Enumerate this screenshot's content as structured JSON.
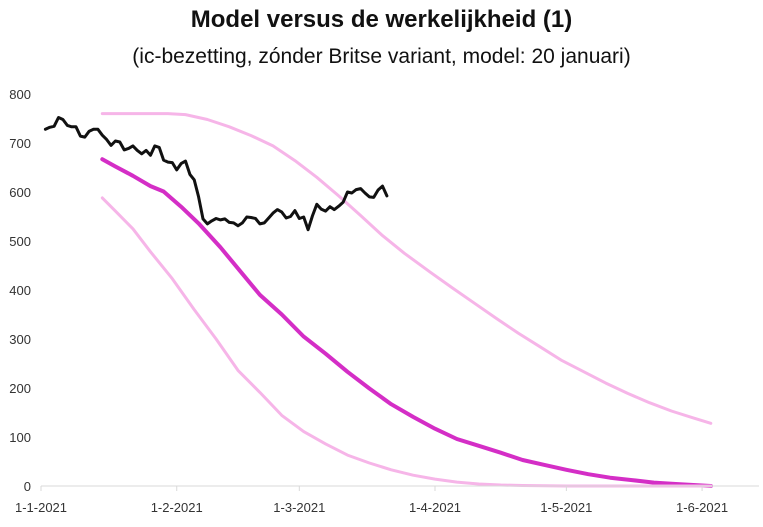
{
  "chart_data": {
    "type": "line",
    "title": "Model versus de werkelijkheid (1)",
    "subtitle": "(ic-bezetting, zónder Britse variant, model: 20 januari)",
    "ylim": [
      0,
      800
    ],
    "yticks": [
      0,
      100,
      200,
      300,
      400,
      500,
      600,
      700,
      800
    ],
    "xlim": [
      "2021-01-01",
      "2021-06-14"
    ],
    "xticks": [
      {
        "date": "2021-01-01",
        "label": "1-1-2021"
      },
      {
        "date": "2021-02-01",
        "label": "1-2-2021"
      },
      {
        "date": "2021-03-01",
        "label": "1-3-2021"
      },
      {
        "date": "2021-04-01",
        "label": "1-4-2021"
      },
      {
        "date": "2021-05-01",
        "label": "1-5-2021"
      },
      {
        "date": "2021-06-01",
        "label": "1-6-2021"
      }
    ],
    "grid": false,
    "series": [
      {
        "color": "#f6b5e8",
        "width": 3,
        "points": [
          [
            "2021-01-15",
            760
          ],
          [
            "2021-01-20",
            760
          ],
          [
            "2021-01-25",
            760
          ],
          [
            "2021-01-30",
            760
          ],
          [
            "2021-02-03",
            758
          ],
          [
            "2021-02-08",
            748
          ],
          [
            "2021-02-13",
            733
          ],
          [
            "2021-02-18",
            715
          ],
          [
            "2021-02-23",
            694
          ],
          [
            "2021-02-28",
            664
          ],
          [
            "2021-03-05",
            630
          ],
          [
            "2021-03-10",
            592
          ],
          [
            "2021-03-15",
            552
          ],
          [
            "2021-03-20",
            511
          ],
          [
            "2021-03-25",
            475
          ],
          [
            "2021-03-31",
            436
          ],
          [
            "2021-04-05",
            404
          ],
          [
            "2021-04-10",
            373
          ],
          [
            "2021-04-15",
            342
          ],
          [
            "2021-04-20",
            312
          ],
          [
            "2021-04-25",
            284
          ],
          [
            "2021-04-30",
            256
          ],
          [
            "2021-05-05",
            233
          ],
          [
            "2021-05-10",
            210
          ],
          [
            "2021-05-15",
            189
          ],
          [
            "2021-05-20",
            170
          ],
          [
            "2021-05-25",
            153
          ],
          [
            "2021-05-30",
            139
          ],
          [
            "2021-06-03",
            128
          ]
        ]
      },
      {
        "color": "#d42ec6",
        "width": 4,
        "points": [
          [
            "2021-01-15",
            667
          ],
          [
            "2021-01-18",
            652
          ],
          [
            "2021-01-22",
            633
          ],
          [
            "2021-01-26",
            612
          ],
          [
            "2021-01-29",
            601
          ],
          [
            "2021-02-02",
            570
          ],
          [
            "2021-02-06",
            536
          ],
          [
            "2021-02-11",
            487
          ],
          [
            "2021-02-16",
            433
          ],
          [
            "2021-02-20",
            390
          ],
          [
            "2021-02-25",
            350
          ],
          [
            "2021-03-02",
            305
          ],
          [
            "2021-03-07",
            270
          ],
          [
            "2021-03-12",
            233
          ],
          [
            "2021-03-17",
            199
          ],
          [
            "2021-03-22",
            167
          ],
          [
            "2021-03-27",
            141
          ],
          [
            "2021-04-01",
            117
          ],
          [
            "2021-04-06",
            96
          ],
          [
            "2021-04-11",
            82
          ],
          [
            "2021-04-16",
            68
          ],
          [
            "2021-04-21",
            53
          ],
          [
            "2021-04-26",
            43
          ],
          [
            "2021-05-01",
            33
          ],
          [
            "2021-05-06",
            24
          ],
          [
            "2021-05-11",
            17
          ],
          [
            "2021-05-16",
            12
          ],
          [
            "2021-05-21",
            7
          ],
          [
            "2021-05-26",
            4
          ],
          [
            "2021-06-03",
            0
          ]
        ]
      },
      {
        "color": "#f6b5e8",
        "width": 3,
        "points": [
          [
            "2021-01-15",
            588
          ],
          [
            "2021-01-18",
            561
          ],
          [
            "2021-01-22",
            525
          ],
          [
            "2021-01-26",
            478
          ],
          [
            "2021-01-31",
            423
          ],
          [
            "2021-02-05",
            360
          ],
          [
            "2021-02-10",
            300
          ],
          [
            "2021-02-15",
            236
          ],
          [
            "2021-02-20",
            191
          ],
          [
            "2021-02-25",
            144
          ],
          [
            "2021-03-02",
            111
          ],
          [
            "2021-03-07",
            86
          ],
          [
            "2021-03-12",
            63
          ],
          [
            "2021-03-17",
            47
          ],
          [
            "2021-03-22",
            33
          ],
          [
            "2021-03-27",
            22
          ],
          [
            "2021-04-01",
            14
          ],
          [
            "2021-04-06",
            8
          ],
          [
            "2021-04-11",
            4
          ],
          [
            "2021-04-16",
            2
          ],
          [
            "2021-04-21",
            1
          ],
          [
            "2021-05-01",
            0
          ],
          [
            "2021-06-03",
            0
          ]
        ]
      },
      {
        "color": "#111111",
        "width": 3,
        "points": [
          [
            "2021-01-02",
            728
          ],
          [
            "2021-01-03",
            732
          ],
          [
            "2021-01-04",
            734
          ],
          [
            "2021-01-05",
            752
          ],
          [
            "2021-01-06",
            748
          ],
          [
            "2021-01-07",
            736
          ],
          [
            "2021-01-08",
            733
          ],
          [
            "2021-01-09",
            733
          ],
          [
            "2021-01-10",
            714
          ],
          [
            "2021-01-11",
            712
          ],
          [
            "2021-01-12",
            724
          ],
          [
            "2021-01-13",
            728
          ],
          [
            "2021-01-14",
            728
          ],
          [
            "2021-01-15",
            716
          ],
          [
            "2021-01-16",
            707
          ],
          [
            "2021-01-17",
            695
          ],
          [
            "2021-01-18",
            704
          ],
          [
            "2021-01-19",
            702
          ],
          [
            "2021-01-20",
            686
          ],
          [
            "2021-01-21",
            689
          ],
          [
            "2021-01-22",
            694
          ],
          [
            "2021-01-23",
            685
          ],
          [
            "2021-01-24",
            678
          ],
          [
            "2021-01-25",
            685
          ],
          [
            "2021-01-26",
            675
          ],
          [
            "2021-01-27",
            694
          ],
          [
            "2021-01-28",
            691
          ],
          [
            "2021-01-29",
            665
          ],
          [
            "2021-01-30",
            661
          ],
          [
            "2021-01-31",
            660
          ],
          [
            "2021-02-01",
            645
          ],
          [
            "2021-02-02",
            658
          ],
          [
            "2021-02-03",
            663
          ],
          [
            "2021-02-04",
            636
          ],
          [
            "2021-02-05",
            625
          ],
          [
            "2021-02-06",
            590
          ],
          [
            "2021-02-07",
            545
          ],
          [
            "2021-02-08",
            535
          ],
          [
            "2021-02-09",
            541
          ],
          [
            "2021-02-10",
            546
          ],
          [
            "2021-02-11",
            543
          ],
          [
            "2021-02-12",
            545
          ],
          [
            "2021-02-13",
            538
          ],
          [
            "2021-02-14",
            537
          ],
          [
            "2021-02-15",
            531
          ],
          [
            "2021-02-16",
            537
          ],
          [
            "2021-02-17",
            549
          ],
          [
            "2021-02-18",
            548
          ],
          [
            "2021-02-19",
            546
          ],
          [
            "2021-02-20",
            535
          ],
          [
            "2021-02-21",
            537
          ],
          [
            "2021-02-22",
            547
          ],
          [
            "2021-02-23",
            557
          ],
          [
            "2021-02-24",
            564
          ],
          [
            "2021-02-25",
            559
          ],
          [
            "2021-02-26",
            547
          ],
          [
            "2021-02-27",
            550
          ],
          [
            "2021-02-28",
            562
          ],
          [
            "2021-03-01",
            546
          ],
          [
            "2021-03-02",
            549
          ],
          [
            "2021-03-03",
            523
          ],
          [
            "2021-03-04",
            551
          ],
          [
            "2021-03-05",
            575
          ],
          [
            "2021-03-06",
            565
          ],
          [
            "2021-03-07",
            561
          ],
          [
            "2021-03-08",
            570
          ],
          [
            "2021-03-09",
            564
          ],
          [
            "2021-03-10",
            571
          ],
          [
            "2021-03-11",
            579
          ],
          [
            "2021-03-12",
            600
          ],
          [
            "2021-03-13",
            598
          ],
          [
            "2021-03-14",
            605
          ],
          [
            "2021-03-15",
            607
          ],
          [
            "2021-03-16",
            598
          ],
          [
            "2021-03-17",
            590
          ],
          [
            "2021-03-18",
            589
          ],
          [
            "2021-03-19",
            604
          ],
          [
            "2021-03-20",
            612
          ],
          [
            "2021-03-21",
            592
          ]
        ]
      }
    ]
  }
}
